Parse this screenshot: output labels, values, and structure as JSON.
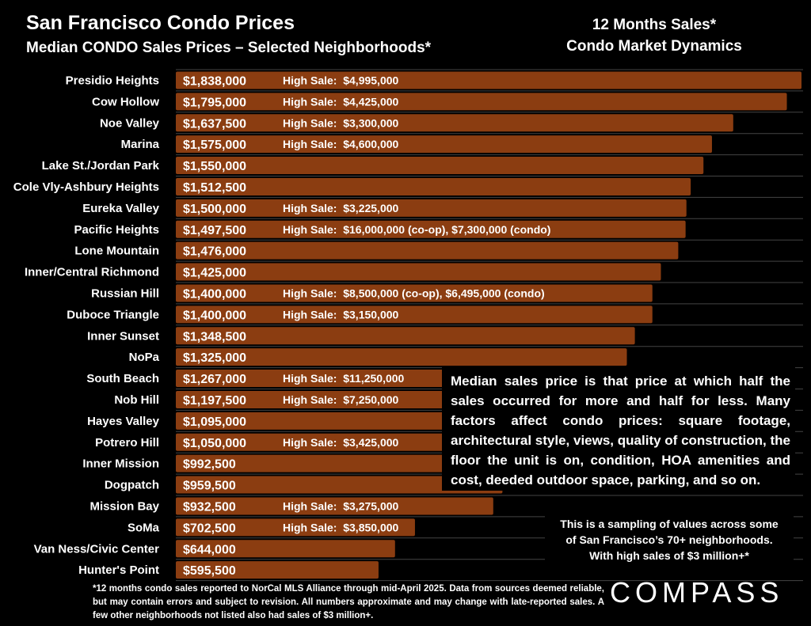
{
  "header": {
    "title": "San Francisco Condo Prices",
    "subtitle": "Median CONDO Sales Prices – Selected Neighborhoods*",
    "side_line1": "12 Months Sales*",
    "side_line2": "Condo Market Dynamics"
  },
  "chart_data": {
    "type": "bar",
    "orientation": "horizontal",
    "bar_color": "#8b3d11",
    "grid": true,
    "categories": [
      "Presidio Heights",
      "Cow Hollow",
      "Noe Valley",
      "Marina",
      "Lake St./Jordan Park",
      "Cole Vly-Ashbury Heights",
      "Eureka Valley",
      "Pacific Heights",
      "Lone Mountain",
      "Inner/Central Richmond",
      "Russian Hill",
      "Duboce Triangle",
      "Inner Sunset",
      "NoPa",
      "South Beach",
      "Nob Hill",
      "Hayes Valley",
      "Potrero Hill",
      "Inner Mission",
      "Dogpatch",
      "Mission Bay",
      "SoMa",
      "Van Ness/Civic Center",
      "Hunter's Point"
    ],
    "values": [
      1838000,
      1795000,
      1637500,
      1575000,
      1550000,
      1512500,
      1500000,
      1497500,
      1476000,
      1425000,
      1400000,
      1400000,
      1348500,
      1325000,
      1267000,
      1197500,
      1095000,
      1050000,
      992500,
      959500,
      932500,
      702500,
      644000,
      595500
    ],
    "value_labels": [
      "$1,838,000",
      "$1,795,000",
      "$1,637,500",
      "$1,575,000",
      "$1,550,000",
      "$1,512,500",
      "$1,500,000",
      "$1,497,500",
      "$1,476,000",
      "$1,425,000",
      "$1,400,000",
      "$1,400,000",
      "$1,348,500",
      "$1,325,000",
      "$1,267,000",
      "$1,197,500",
      "$1,095,000",
      "$1,050,000",
      "$992,500",
      "$959,500",
      "$932,500",
      "$702,500",
      "$644,000",
      "$595,500"
    ],
    "high_sales": [
      "High Sale:  $4,995,000",
      "High Sale:  $4,425,000",
      "High Sale:  $3,300,000",
      "High Sale:  $4,600,000",
      "",
      "",
      "High Sale:  $3,225,000",
      "High Sale:  $16,000,000 (co-op), $7,300,000 (condo)",
      "",
      "",
      "High Sale:  $8,500,000 (co-op), $6,495,000 (condo)",
      "High Sale:  $3,150,000",
      "",
      "",
      "High Sale:  $11,250,000",
      "High Sale:  $7,250,000",
      "",
      "High Sale:  $3,425,000",
      "",
      "",
      "High Sale:  $3,275,000",
      "High Sale:  $3,850,000",
      "",
      ""
    ]
  },
  "explanation": "Median sales price is that price at which half the sales occurred for more and half for less. Many factors affect condo prices: square footage, architectural style, views, quality of construction, the floor the unit is on, condition, HOA amenities and cost, deeded outdoor space, parking, and so on.",
  "sampling_note": {
    "line1": "This is a sampling of values across some",
    "line2": "of San Francisco’s 70+ neighborhoods.",
    "line3": "With high sales of $3 million+*"
  },
  "footnote": "*12 months condo sales reported to NorCal MLS Alliance through mid-April 2025. Data from sources deemed reliable, but may contain errors and subject to revision. All numbers approximate and may change with late-reported sales. A few other neighborhoods not listed also had sales of $3 million+.",
  "logo_text": "COMPASS"
}
